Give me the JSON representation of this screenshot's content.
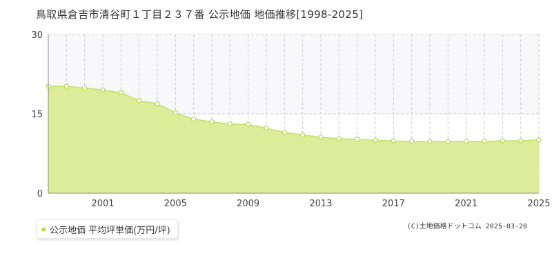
{
  "page": {
    "title": "鳥取県倉吉市清谷町１丁目２３７番 公示地価 地価推移[1998-2025]",
    "copyright": "(C)土地価格ドットコム 2025-03-20"
  },
  "colors": {
    "area_fill": "#dcec98",
    "line": "#c5e068",
    "marker_stroke": "#b6d552",
    "marker_fill": "#ffffff",
    "band_fill": "#f8f8fa",
    "grid": "#cccccc",
    "axis": "#888888"
  },
  "chart_data": {
    "type": "area",
    "title": "鳥取県倉吉市清谷町１丁目２３７番 公示地価 地価推移[1998-2025]",
    "xlabel": "",
    "ylabel": "",
    "xlim": [
      1998,
      2025
    ],
    "ylim": [
      0,
      30
    ],
    "x_ticks": [
      2001,
      2005,
      2009,
      2013,
      2017,
      2021,
      2025
    ],
    "x_tick_labels": [
      "2001",
      "2005",
      "2009",
      "2013",
      "2017",
      "2021",
      "2025"
    ],
    "y_ticks": [
      0,
      15,
      30
    ],
    "y_tick_labels": [
      "0",
      "15",
      "30"
    ],
    "grid": true,
    "legend_position": "bottom-left",
    "series": [
      {
        "name": "公示地価 平均坪単価(万円/坪)",
        "x": [
          1998,
          1999,
          2000,
          2001,
          2002,
          2003,
          2004,
          2005,
          2006,
          2007,
          2008,
          2009,
          2010,
          2011,
          2012,
          2013,
          2014,
          2015,
          2016,
          2017,
          2018,
          2019,
          2020,
          2021,
          2022,
          2023,
          2024,
          2025
        ],
        "values": [
          20.2,
          20.2,
          19.9,
          19.5,
          19.0,
          17.5,
          16.9,
          15.2,
          14.0,
          13.5,
          13.1,
          13.0,
          12.3,
          11.5,
          11.0,
          10.6,
          10.3,
          10.2,
          10.0,
          9.9,
          9.8,
          9.8,
          9.8,
          9.8,
          9.8,
          9.9,
          9.9,
          10.1
        ]
      }
    ]
  }
}
